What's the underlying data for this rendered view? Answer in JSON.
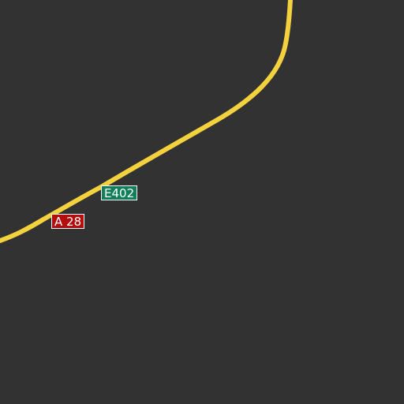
{
  "map": {
    "background_color": "#323232",
    "roads": [
      {
        "name": "motorway",
        "color": "#f4d23e"
      }
    ],
    "shields": [
      {
        "label": "E402",
        "type": "european-route",
        "color": "#11805a"
      },
      {
        "label": "A 28",
        "type": "autoroute",
        "color": "#b40d0d"
      }
    ]
  }
}
